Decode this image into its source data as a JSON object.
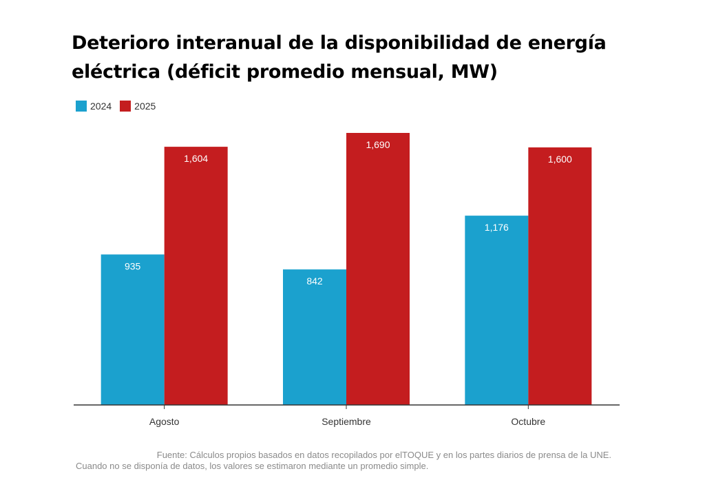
{
  "chart_data": {
    "type": "bar",
    "title": "Deterioro interanual de la disponibilidad de energía eléctrica (déficit promedio mensual, MW)",
    "categories": [
      "Agosto",
      "Septiembre",
      "Octubre"
    ],
    "series": [
      {
        "name": "2024",
        "color": "#1ba1ce",
        "values": [
          935,
          842,
          1176
        ],
        "labels": [
          "935",
          "842",
          "1,176"
        ]
      },
      {
        "name": "2025",
        "color": "#c41d1f",
        "values": [
          1604,
          1690,
          1600
        ],
        "labels": [
          "1,604",
          "1,690",
          "1,600"
        ]
      }
    ],
    "xlabel": "",
    "ylabel": "",
    "ylim": [
      0,
      1690
    ],
    "grid": false,
    "legend_position": "top-left",
    "data_label_color": "#ffffff",
    "axis_color": "#333333"
  },
  "legend": [
    {
      "label": "2024",
      "color": "#1ba1ce"
    },
    {
      "label": "2025",
      "color": "#c41d1f"
    }
  ],
  "footer": {
    "line1": "Fuente: Cálculos propios basados en datos recopilados por elTOQUE y en los partes diarios de prensa de la UNE.",
    "line2": "Cuando no se disponía de datos, los valores se estimaron mediante un promedio simple."
  }
}
